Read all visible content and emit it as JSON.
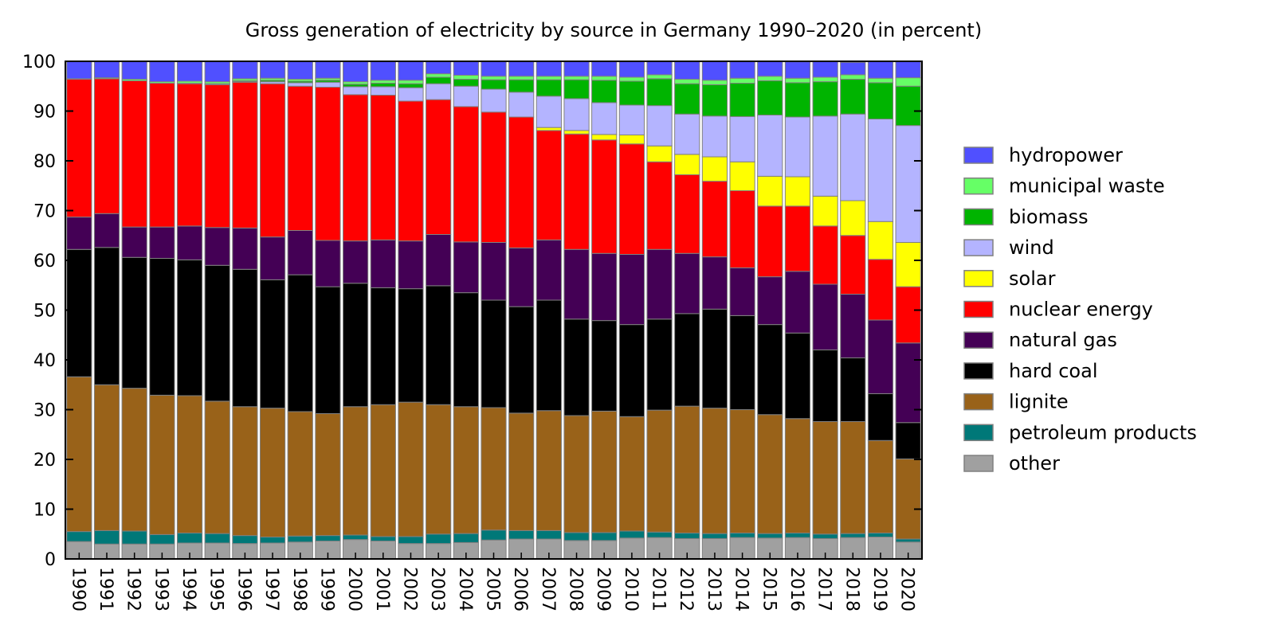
{
  "chart_data": {
    "type": "bar",
    "stacked": true,
    "title": "Gross generation of electricity by source in Germany 1990–2020 (in percent)",
    "xlabel": "",
    "ylabel": "",
    "ylim": [
      0,
      100
    ],
    "yticks": [
      0,
      10,
      20,
      30,
      40,
      50,
      60,
      70,
      80,
      90,
      100
    ],
    "grid": false,
    "legend_position": "right",
    "categories": [
      "1990",
      "1991",
      "1992",
      "1993",
      "1994",
      "1995",
      "1996",
      "1997",
      "1998",
      "1999",
      "2000",
      "2001",
      "2002",
      "2003",
      "2004",
      "2005",
      "2006",
      "2007",
      "2008",
      "2009",
      "2010",
      "2011",
      "2012",
      "2013",
      "2014",
      "2015",
      "2016",
      "2017",
      "2018",
      "2019",
      "2020"
    ],
    "series": [
      {
        "name": "other",
        "color": "#a0a0a0",
        "values": [
          3.5,
          3.0,
          3.0,
          3.0,
          3.2,
          3.2,
          3.1,
          3.2,
          3.4,
          3.6,
          3.9,
          3.6,
          3.1,
          3.1,
          3.3,
          3.8,
          4.0,
          4.0,
          3.7,
          3.7,
          4.2,
          4.3,
          4.1,
          4.1,
          4.3,
          4.2,
          4.3,
          4.1,
          4.3,
          4.4,
          3.4
        ]
      },
      {
        "name": "petroleum products",
        "color": "#007878",
        "values": [
          2.0,
          2.7,
          2.6,
          1.9,
          2.0,
          1.9,
          1.6,
          1.2,
          1.2,
          1.1,
          0.9,
          0.9,
          1.4,
          1.9,
          1.8,
          2.0,
          1.7,
          1.7,
          1.6,
          1.6,
          1.4,
          1.1,
          1.1,
          1.0,
          0.9,
          0.9,
          0.9,
          0.9,
          0.8,
          0.8,
          0.6
        ]
      },
      {
        "name": "lignite",
        "color": "#996219",
        "values": [
          31.1,
          29.3,
          28.7,
          28.0,
          27.6,
          26.6,
          25.9,
          25.9,
          25.0,
          24.5,
          25.8,
          26.5,
          27.0,
          26.0,
          25.5,
          24.6,
          23.6,
          24.1,
          23.5,
          24.4,
          23.0,
          24.5,
          25.5,
          25.2,
          24.8,
          23.9,
          23.0,
          22.6,
          22.5,
          18.6,
          16.1
        ]
      },
      {
        "name": "hard coal",
        "color": "#000000",
        "values": [
          25.6,
          27.6,
          26.3,
          27.5,
          27.3,
          27.3,
          27.6,
          25.8,
          27.5,
          25.5,
          24.8,
          23.5,
          22.8,
          23.9,
          22.9,
          21.6,
          21.4,
          22.2,
          19.4,
          18.2,
          18.5,
          18.3,
          18.6,
          19.9,
          18.9,
          18.1,
          17.2,
          14.4,
          12.8,
          9.4,
          7.3
        ]
      },
      {
        "name": "natural gas",
        "color": "#440055",
        "values": [
          6.5,
          6.8,
          6.1,
          6.3,
          6.8,
          7.6,
          8.3,
          8.6,
          8.9,
          9.3,
          8.5,
          9.6,
          9.6,
          10.3,
          10.2,
          11.6,
          11.8,
          12.1,
          14.0,
          13.5,
          14.1,
          14.0,
          12.1,
          10.5,
          9.6,
          9.6,
          12.4,
          13.2,
          12.8,
          14.8,
          16.0
        ]
      },
      {
        "name": "nuclear energy",
        "color": "#ff0000",
        "values": [
          27.7,
          27.1,
          29.4,
          28.9,
          28.6,
          28.7,
          29.3,
          30.8,
          29.0,
          30.8,
          29.4,
          29.1,
          28.1,
          27.1,
          27.2,
          26.2,
          26.3,
          22.0,
          23.2,
          22.8,
          22.2,
          17.6,
          15.8,
          15.2,
          15.5,
          14.2,
          13.1,
          11.7,
          11.8,
          12.2,
          11.3
        ]
      },
      {
        "name": "solar",
        "color": "#ffff00",
        "values": [
          0,
          0,
          0,
          0,
          0,
          0,
          0,
          0,
          0,
          0,
          0,
          0,
          0,
          0,
          0,
          0,
          0,
          0.6,
          0.7,
          1.1,
          1.8,
          3.2,
          4.1,
          4.9,
          5.8,
          6.0,
          5.9,
          6.0,
          7.0,
          7.6,
          8.9
        ]
      },
      {
        "name": "wind",
        "color": "#b4b4ff",
        "values": [
          0,
          0,
          0,
          0,
          0,
          0.1,
          0.1,
          0.4,
          0.7,
          1.0,
          1.6,
          1.7,
          2.7,
          3.2,
          4.1,
          4.6,
          5.0,
          6.3,
          6.4,
          6.4,
          6.0,
          8.1,
          8.1,
          8.2,
          9.1,
          12.3,
          12.0,
          16.1,
          17.4,
          20.6,
          23.5
        ]
      },
      {
        "name": "biomass",
        "color": "#00b400",
        "values": [
          0,
          0,
          0,
          0,
          0.1,
          0.1,
          0.2,
          0.3,
          0.3,
          0.4,
          0.5,
          0.7,
          0.8,
          1.3,
          1.4,
          1.9,
          2.5,
          3.3,
          3.8,
          4.5,
          4.8,
          5.4,
          6.1,
          6.3,
          6.7,
          6.9,
          6.9,
          6.9,
          7.0,
          7.3,
          7.9
        ]
      },
      {
        "name": "municipal waste",
        "color": "#66ff66",
        "values": [
          0.1,
          0.2,
          0.3,
          0.3,
          0.4,
          0.4,
          0.4,
          0.4,
          0.4,
          0.4,
          0.5,
          0.6,
          0.7,
          0.7,
          0.8,
          0.7,
          0.7,
          0.7,
          0.7,
          0.8,
          0.8,
          0.8,
          0.9,
          0.9,
          1.0,
          0.9,
          0.9,
          0.9,
          0.9,
          0.9,
          1.7
        ]
      },
      {
        "name": "hydropower",
        "color": "#5050ff",
        "values": [
          3.5,
          3.3,
          3.6,
          4.1,
          4.0,
          4.1,
          3.5,
          3.4,
          3.6,
          3.7,
          4.1,
          3.8,
          3.8,
          2.5,
          3.0,
          3.1,
          3.0,
          3.0,
          3.0,
          3.0,
          3.2,
          2.7,
          3.7,
          3.8,
          3.4,
          3.0,
          3.3,
          3.2,
          2.5,
          3.4,
          3.3
        ]
      }
    ]
  }
}
